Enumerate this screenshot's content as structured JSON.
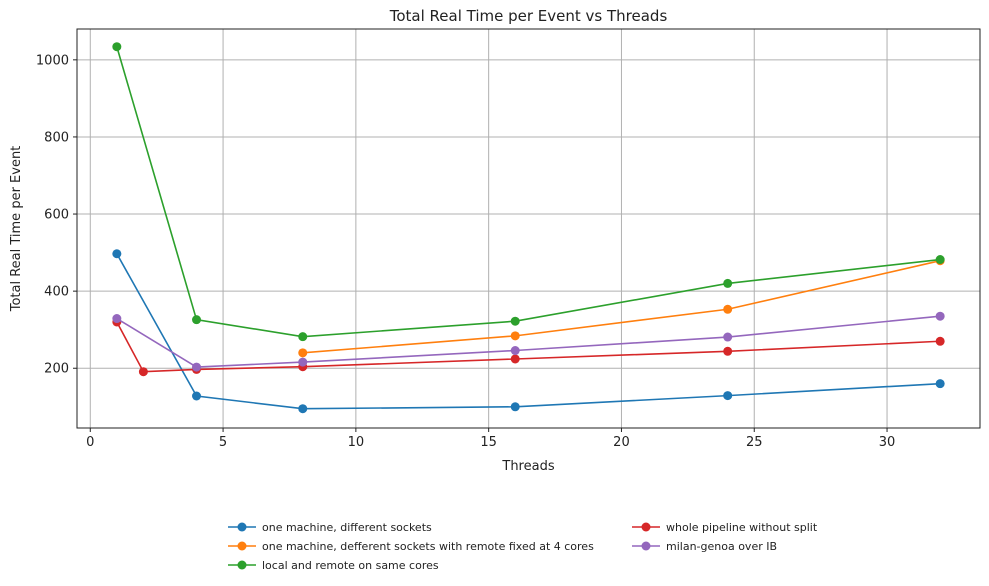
{
  "chart_data": {
    "type": "line",
    "title": "Total Real Time per Event vs Threads",
    "xlabel": "Threads",
    "ylabel": "Total Real Time per Event",
    "xlim": [
      -0.5,
      33.5
    ],
    "ylim": [
      45,
      1080
    ],
    "xticks": [
      0,
      5,
      10,
      15,
      20,
      25,
      30
    ],
    "yticks": [
      200,
      400,
      600,
      800,
      1000
    ],
    "grid": true,
    "legend_position": "bottom-center",
    "series": [
      {
        "name": "one machine, different sockets",
        "color": "#1f77b4",
        "x": [
          1,
          4,
          8,
          16,
          24,
          32
        ],
        "y": [
          497,
          128,
          95,
          100,
          129,
          160
        ]
      },
      {
        "name": "one machine, defferent sockets with remote fixed at 4 cores",
        "color": "#ff7f0e",
        "x": [
          8,
          16,
          24,
          32
        ],
        "y": [
          240,
          284,
          353,
          479
        ]
      },
      {
        "name": "local and remote on same cores",
        "color": "#2ca02c",
        "x": [
          1,
          4,
          8,
          16,
          24,
          32
        ],
        "y": [
          1034,
          326,
          282,
          322,
          420,
          482
        ]
      },
      {
        "name": "whole pipeline without split",
        "color": "#d62728",
        "x": [
          1,
          2,
          4,
          8,
          16,
          24,
          32
        ],
        "y": [
          320,
          191,
          197,
          204,
          224,
          244,
          270
        ]
      },
      {
        "name": "milan-genoa over IB",
        "color": "#9467bd",
        "x": [
          1,
          4,
          8,
          16,
          24,
          32
        ],
        "y": [
          329,
          203,
          216,
          246,
          281,
          335
        ]
      }
    ]
  }
}
